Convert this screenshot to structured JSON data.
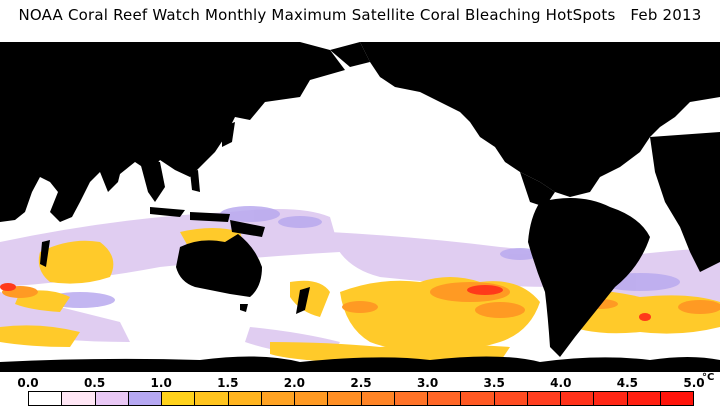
{
  "title": "NOAA Coral Reef Watch Monthly Maximum Satellite Coral Bleaching HotSpots   Feb 2013",
  "legend": {
    "ticks": [
      "0.0",
      "0.5",
      "1.0",
      "1.5",
      "2.0",
      "2.5",
      "3.0",
      "3.5",
      "4.0",
      "4.5",
      "5.0"
    ],
    "unit": "°C",
    "colors": [
      "#ffffff",
      "#ffe6f5",
      "#e9c8f5",
      "#b6a8f2",
      "#ffd21c",
      "#ffc41e",
      "#ffb41f",
      "#ffa323",
      "#ff9a23",
      "#ff8f25",
      "#ff8426",
      "#ff7328",
      "#ff6627",
      "#ff5923",
      "#ff4c21",
      "#ff3e1f",
      "#ff321a",
      "#ff2715",
      "#ff1f10",
      "#ff140b"
    ]
  },
  "colors": {
    "land": "#000000",
    "ocean": "#ffffff",
    "lavender": "#d9c3ef",
    "violet": "#b9a9ee",
    "yellow": "#ffca2a",
    "orange": "#ff9a23",
    "red": "#ff3a1a"
  }
}
